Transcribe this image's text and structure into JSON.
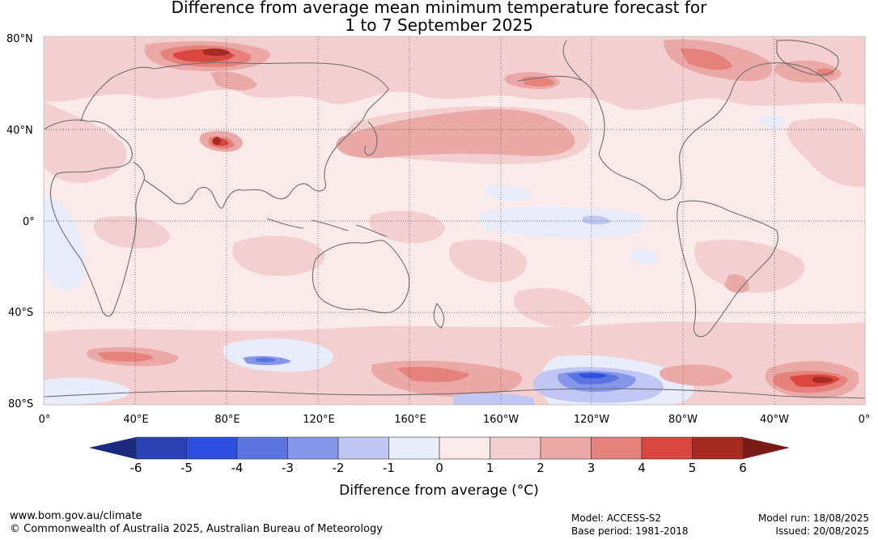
{
  "title_line1": "Difference from average mean minimum temperature forecast for",
  "title_line2": "1 to 7 September 2025",
  "lat_labels": [
    "80°N",
    "40°N",
    "0°",
    "40°S",
    "80°S"
  ],
  "lon_labels": [
    "0°",
    "40°E",
    "80°E",
    "120°E",
    "160°E",
    "160°W",
    "120°W",
    "80°W",
    "40°W",
    "0°"
  ],
  "colorbar": {
    "title": "Difference from average (°C)",
    "ticks": [
      "-6",
      "-5",
      "-4",
      "-3",
      "-2",
      "-1",
      "0",
      "1",
      "2",
      "3",
      "4",
      "5",
      "6"
    ],
    "colors": [
      "#1b2a7e",
      "#2a43b4",
      "#2f4fe0",
      "#5a74e2",
      "#8696ea",
      "#bfc7f2",
      "#e9ecfb",
      "#fbeaea",
      "#f4cfcf",
      "#eaa9a6",
      "#e6827b",
      "#d9473f",
      "#a82a22",
      "#7a1b16"
    ]
  },
  "footer": {
    "website": "www.bom.gov.au/climate",
    "copyright": "© Commonwealth of Australia 2025, Australian Bureau of Meteorology",
    "model": "Model: ACCESS-S2",
    "base_period": "Base period: 1981-2018",
    "model_run": "Model run: 18/08/2025",
    "issued": "Issued: 20/08/2025"
  }
}
